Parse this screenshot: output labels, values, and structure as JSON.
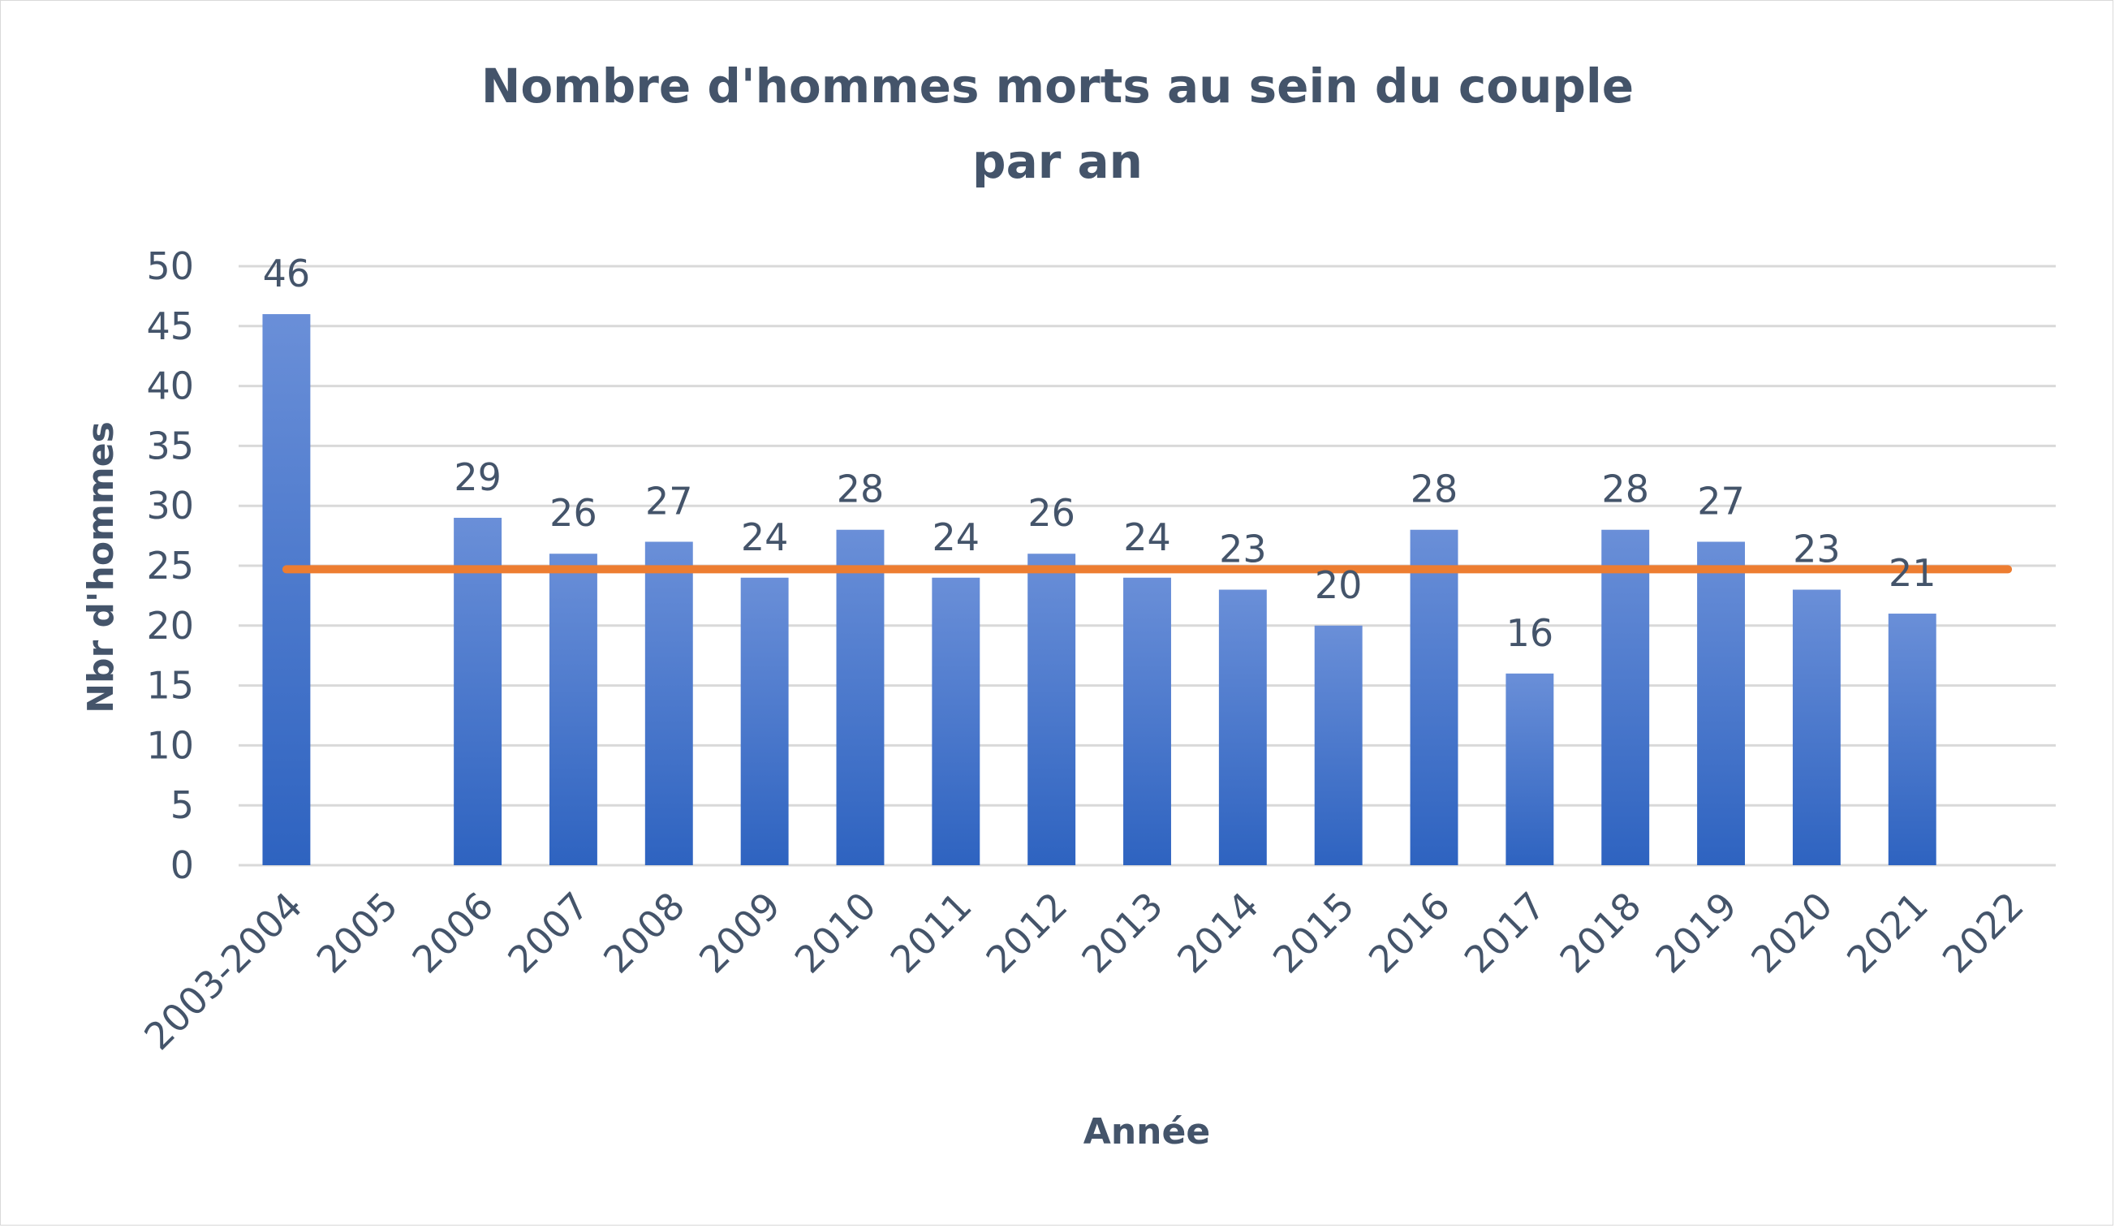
{
  "chart_data": {
    "type": "bar",
    "title_lines": [
      "Nombre d'hommes morts au sein du couple",
      "par an"
    ],
    "xlabel": "Année",
    "ylabel": "Nbr d'hommes",
    "categories": [
      "2003-2004",
      "2005",
      "2006",
      "2007",
      "2008",
      "2009",
      "2010",
      "2011",
      "2012",
      "2013",
      "2014",
      "2015",
      "2016",
      "2017",
      "2018",
      "2019",
      "2020",
      "2021",
      "2022"
    ],
    "values": [
      46,
      null,
      29,
      26,
      27,
      24,
      28,
      24,
      26,
      24,
      23,
      20,
      28,
      16,
      28,
      27,
      23,
      21,
      null
    ],
    "data_labels": [
      "46",
      "",
      "29",
      "26",
      "27",
      "24",
      "28",
      "24",
      "26",
      "24",
      "23",
      "20",
      "28",
      "16",
      "28",
      "27",
      "23",
      "21",
      ""
    ],
    "y_ticks": [
      "0",
      "5",
      "10",
      "15",
      "20",
      "25",
      "30",
      "35",
      "40",
      "45",
      "50"
    ],
    "ylim": [
      0,
      50
    ],
    "average_line": 24.7,
    "grid": true,
    "legend": "none",
    "colors": {
      "bar_top": "#6a8fd8",
      "bar_bottom": "#2e63c0",
      "average_line": "#ed7d31",
      "text": "#44546a",
      "gridline": "#d9d9d9"
    }
  }
}
